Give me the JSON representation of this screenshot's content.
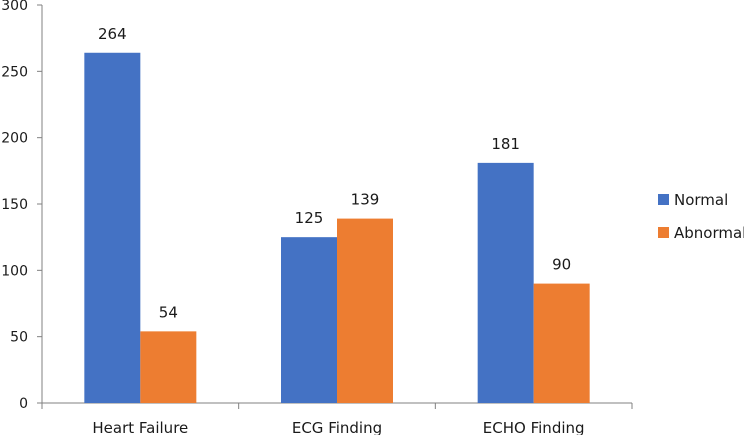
{
  "chart_data": {
    "type": "bar",
    "title": "",
    "xlabel": "",
    "ylabel": "",
    "categories": [
      "Heart Failure",
      "ECG Finding",
      "ECHO Finding"
    ],
    "series": [
      {
        "name": "Normal",
        "values": [
          264,
          125,
          181
        ],
        "color": "#4472c4"
      },
      {
        "name": "Abnormal",
        "values": [
          54,
          139,
          90
        ],
        "color": "#ed7d31"
      }
    ],
    "ylim": [
      0,
      300
    ],
    "yticks": [
      0,
      50,
      100,
      150,
      200,
      250,
      300
    ],
    "grid": false,
    "legend_position": "right",
    "data_labels": true
  }
}
